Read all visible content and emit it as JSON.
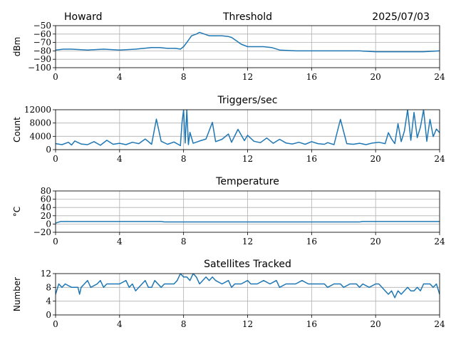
{
  "header": {
    "station": "Howard",
    "date": "2025/07/03"
  },
  "colors": {
    "series": "#1f77b4",
    "grid": "#b0b0b0"
  },
  "chart_data": [
    {
      "type": "line",
      "title": "Threshold",
      "ylabel": "dBm",
      "xlim": [
        0,
        24
      ],
      "ylim": [
        -100,
        -50
      ],
      "xticks": [
        0,
        4,
        8,
        12,
        16,
        20,
        24
      ],
      "yticks": [
        -100,
        -90,
        -80,
        -70,
        -60,
        -50
      ],
      "ytick_labels": [
        "−100",
        "−90",
        "−80",
        "−70",
        "−60",
        "−50"
      ],
      "grid": true,
      "series": [
        {
          "x": [
            0,
            0.5,
            1,
            2,
            3,
            4,
            5,
            5.5,
            6,
            6.5,
            7,
            7.5,
            7.8,
            8,
            8.2,
            8.5,
            8.8,
            9,
            9.3,
            9.6,
            10,
            10.4,
            10.8,
            11,
            11.3,
            11.6,
            12,
            12.5,
            13,
            13.5,
            14,
            15,
            16,
            17,
            18,
            19,
            20,
            21,
            22,
            23,
            24
          ],
          "y": [
            -79,
            -78,
            -78,
            -79,
            -78,
            -79,
            -78,
            -77,
            -76,
            -76,
            -77,
            -77,
            -78,
            -75,
            -70,
            -62,
            -60,
            -58,
            -60,
            -62,
            -62,
            -62,
            -63,
            -64,
            -68,
            -72,
            -75,
            -75,
            -75,
            -76,
            -79,
            -80,
            -80,
            -80,
            -80,
            -80,
            -81,
            -81,
            -81,
            -81,
            -80
          ]
        }
      ]
    },
    {
      "type": "line",
      "title": "Triggers/sec",
      "ylabel": "Count",
      "xlim": [
        0,
        24
      ],
      "ylim": [
        0,
        12000
      ],
      "xticks": [
        0,
        4,
        8,
        12,
        16,
        20,
        24
      ],
      "yticks": [
        0,
        4000,
        8000,
        12000
      ],
      "ytick_labels": [
        "0",
        "4000",
        "8000",
        "12000"
      ],
      "grid": true,
      "series": [
        {
          "x": [
            0,
            0.4,
            0.8,
            1.0,
            1.2,
            1.6,
            2.0,
            2.4,
            2.8,
            3.2,
            3.6,
            4.0,
            4.4,
            4.8,
            5.2,
            5.6,
            6.0,
            6.3,
            6.6,
            7.0,
            7.4,
            7.8,
            7.9,
            8.0,
            8.1,
            8.2,
            8.3,
            8.4,
            8.6,
            9.0,
            9.4,
            9.8,
            10.0,
            10.4,
            10.8,
            11.0,
            11.4,
            11.8,
            12.0,
            12.4,
            12.8,
            13.2,
            13.6,
            14.0,
            14.4,
            14.8,
            15.2,
            15.6,
            16.0,
            16.4,
            16.8,
            17.0,
            17.4,
            17.8,
            18.2,
            18.6,
            19.0,
            19.4,
            19.8,
            20.2,
            20.6,
            20.8,
            21.0,
            21.2,
            21.4,
            21.6,
            21.8,
            22.0,
            22.2,
            22.4,
            22.6,
            22.8,
            23.0,
            23.2,
            23.4,
            23.6,
            23.8,
            24.0
          ],
          "y": [
            1800,
            1500,
            2200,
            1400,
            2600,
            1700,
            1500,
            2400,
            1300,
            2800,
            1600,
            1900,
            1500,
            2200,
            1800,
            3200,
            1600,
            9200,
            2500,
            1600,
            2300,
            1200,
            8000,
            12000,
            2000,
            12000,
            1500,
            5200,
            1900,
            2600,
            3200,
            8200,
            2400,
            3100,
            4700,
            2200,
            6100,
            2700,
            4300,
            2500,
            2100,
            3500,
            1900,
            3100,
            2000,
            1700,
            2200,
            1600,
            2400,
            1800,
            1600,
            2100,
            1500,
            9100,
            1800,
            1600,
            1900,
            1500,
            2000,
            2200,
            1800,
            5100,
            3200,
            1800,
            7800,
            2400,
            5600,
            12000,
            2800,
            11200,
            3600,
            6800,
            12000,
            2500,
            9100,
            3900,
            6200,
            5100
          ]
        }
      ]
    },
    {
      "type": "line",
      "title": "Temperature",
      "ylabel": "°C",
      "xlim": [
        0,
        24
      ],
      "ylim": [
        -20,
        80
      ],
      "xticks": [
        0,
        4,
        8,
        12,
        16,
        20,
        24
      ],
      "yticks": [
        -20,
        0,
        20,
        40,
        60,
        80
      ],
      "ytick_labels": [
        "−20",
        "0",
        "20",
        "40",
        "60",
        "80"
      ],
      "grid": true,
      "series": [
        {
          "x": [
            0,
            0.3,
            0.6,
            2,
            4,
            6,
            6.6,
            6.8,
            8,
            10,
            12,
            14,
            16,
            18,
            19,
            19.2,
            20,
            22,
            24
          ],
          "y": [
            2,
            6,
            6,
            6,
            6,
            6,
            6,
            5,
            5,
            5,
            5,
            5,
            5,
            5,
            5,
            6,
            6,
            6,
            6
          ]
        }
      ]
    },
    {
      "type": "line",
      "title": "Satellites Tracked",
      "ylabel": "Number",
      "xlim": [
        0,
        24
      ],
      "ylim": [
        0,
        12
      ],
      "xticks": [
        0,
        4,
        8,
        12,
        16,
        20,
        24
      ],
      "yticks": [
        0,
        4,
        8,
        12
      ],
      "ytick_labels": [
        "0",
        "4",
        "8",
        "12"
      ],
      "grid": true,
      "series": [
        {
          "x": [
            0,
            0.2,
            0.4,
            0.6,
            1.0,
            1.4,
            1.5,
            1.6,
            1.8,
            2.0,
            2.2,
            2.6,
            2.8,
            3.0,
            3.2,
            3.6,
            4.0,
            4.4,
            4.6,
            4.8,
            5.0,
            5.4,
            5.6,
            5.8,
            6.0,
            6.2,
            6.6,
            6.8,
            7.0,
            7.4,
            7.6,
            7.8,
            8.0,
            8.2,
            8.4,
            8.6,
            8.8,
            9.0,
            9.4,
            9.6,
            9.8,
            10.0,
            10.4,
            10.8,
            11.0,
            11.2,
            11.6,
            12.0,
            12.2,
            12.6,
            13.0,
            13.4,
            13.8,
            14.0,
            14.4,
            14.8,
            15.0,
            15.4,
            15.8,
            16.0,
            16.4,
            16.8,
            17.0,
            17.4,
            17.8,
            18.0,
            18.4,
            18.6,
            18.8,
            19.0,
            19.2,
            19.6,
            20.0,
            20.2,
            20.4,
            20.6,
            20.8,
            21.0,
            21.2,
            21.4,
            21.6,
            22.0,
            22.2,
            22.4,
            22.6,
            22.8,
            23.0,
            23.4,
            23.6,
            23.8,
            24.0
          ],
          "y": [
            6,
            9,
            8,
            9,
            8,
            8,
            6,
            8,
            9,
            10,
            8,
            9,
            10,
            8,
            9,
            9,
            9,
            10,
            8,
            9,
            7,
            9,
            10,
            8,
            8,
            10,
            8,
            9,
            9,
            9,
            10,
            12,
            11,
            11,
            10,
            12,
            11,
            9,
            11,
            10,
            11,
            10,
            9,
            10,
            8,
            9,
            9,
            10,
            9,
            9,
            10,
            9,
            10,
            8,
            9,
            9,
            9,
            10,
            9,
            9,
            9,
            9,
            8,
            9,
            9,
            8,
            9,
            9,
            9,
            8,
            9,
            8,
            9,
            9,
            8,
            7,
            6,
            7,
            5,
            7,
            6,
            8,
            7,
            7,
            8,
            7,
            9,
            9,
            8,
            9,
            6
          ]
        }
      ]
    }
  ]
}
